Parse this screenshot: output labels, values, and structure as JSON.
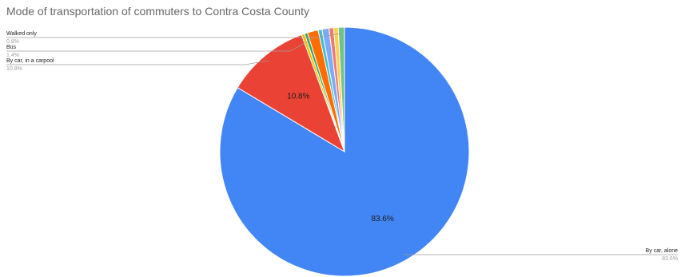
{
  "chart_data": {
    "type": "pie",
    "title": "Mode of transportation of commuters to Contra Costa County",
    "slices": [
      {
        "name": "By car, alone",
        "value": 83.6,
        "label": "83.6%",
        "color": "#4285f4"
      },
      {
        "name": "By car, in a carpool",
        "value": 10.8,
        "label": "10.8%",
        "color": "#ea4335"
      },
      {
        "name": "",
        "value": 0.4,
        "label": "",
        "color": "#fbbc04"
      },
      {
        "name": "",
        "value": 0.4,
        "label": "",
        "color": "#34a853"
      },
      {
        "name": "Bus",
        "value": 1.4,
        "label": "1.4%",
        "color": "#ff6d01"
      },
      {
        "name": "",
        "value": 0.5,
        "label": "",
        "color": "#46bdc6"
      },
      {
        "name": "",
        "value": 0.9,
        "label": "",
        "color": "#7baaf7"
      },
      {
        "name": "",
        "value": 0.6,
        "label": "",
        "color": "#f07b72"
      },
      {
        "name": "",
        "value": 0.6,
        "label": "",
        "color": "#fcd04f"
      },
      {
        "name": "Walked only",
        "value": 0.8,
        "label": "0.8%",
        "color": "#71c287"
      }
    ],
    "outside_labels": [
      {
        "name": "Walked only",
        "pct": "0.8%"
      },
      {
        "name": "Bus",
        "pct": "1.4%"
      },
      {
        "name": "By car, in a carpool",
        "pct": "10.8%"
      },
      {
        "name": "By car, alone",
        "pct": "83.6%"
      }
    ],
    "legend": "none"
  }
}
